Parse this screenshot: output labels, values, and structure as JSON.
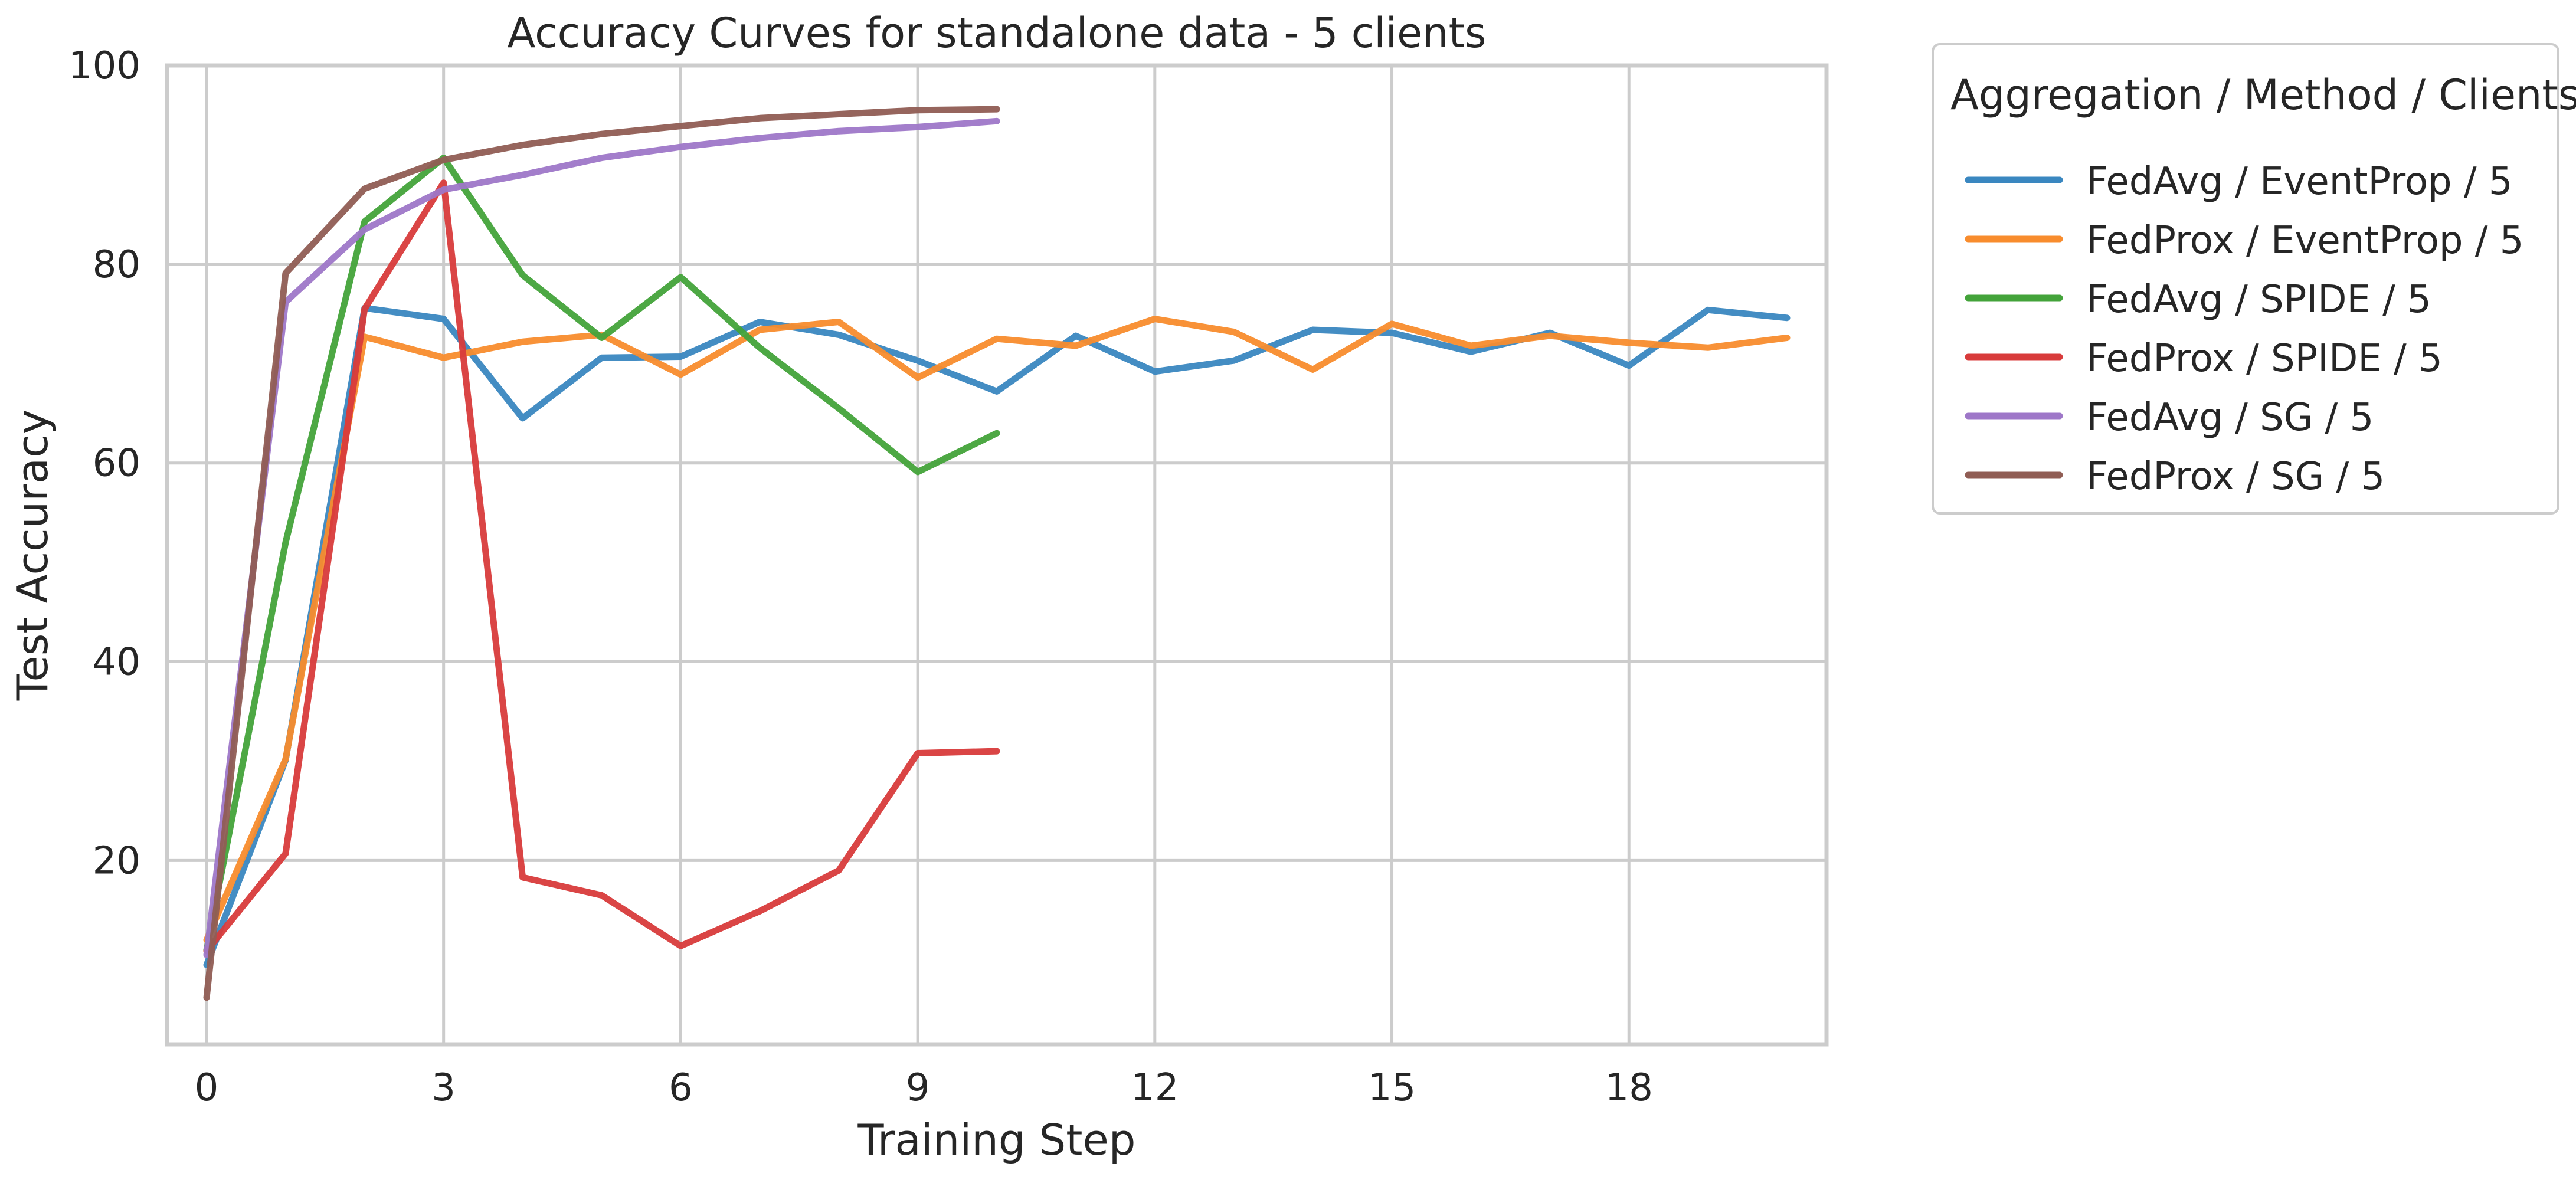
{
  "chart_data": {
    "type": "line",
    "title": "Accuracy Curves for standalone data - 5 clients",
    "xlabel": "Training Step",
    "ylabel": "Test Accuracy",
    "xlim": [
      -0.5,
      20.5
    ],
    "ylim": [
      1.5,
      100
    ],
    "xticks": [
      0,
      3,
      6,
      9,
      12,
      15,
      18
    ],
    "yticks": [
      20,
      40,
      60,
      80,
      100
    ],
    "grid": true,
    "legend": {
      "title": "Aggregation / Method / Clients",
      "placement": "outside right, top"
    },
    "series": [
      {
        "name": "FedAvg / EventProp / 5",
        "color": "#3a87c0",
        "x": [
          0,
          1,
          2,
          3,
          4,
          5,
          6,
          7,
          8,
          9,
          10,
          11,
          12,
          13,
          14,
          15,
          16,
          17,
          18,
          19,
          20
        ],
        "values": [
          9.5,
          30.1,
          75.6,
          74.5,
          64.5,
          70.6,
          70.7,
          74.2,
          72.9,
          70.3,
          67.2,
          72.8,
          69.2,
          70.3,
          73.4,
          73.1,
          71.2,
          73.1,
          69.8,
          75.4,
          74.6
        ]
      },
      {
        "name": "FedProx / EventProp / 5",
        "color": "#f88c2d",
        "x": [
          0,
          1,
          2,
          3,
          4,
          5,
          6,
          7,
          8,
          9,
          10,
          11,
          12,
          13,
          14,
          15,
          16,
          17,
          18,
          19,
          20
        ],
        "values": [
          12.0,
          30.2,
          72.7,
          70.6,
          72.2,
          72.9,
          68.9,
          73.4,
          74.2,
          68.6,
          72.5,
          71.8,
          74.5,
          73.2,
          69.4,
          74.0,
          71.8,
          72.8,
          72.1,
          71.6,
          72.6
        ]
      },
      {
        "name": "FedAvg / SPIDE / 5",
        "color": "#43a33a",
        "x": [
          0,
          1,
          2,
          3,
          4,
          5,
          6,
          7,
          8,
          9,
          10
        ],
        "values": [
          11.0,
          52.0,
          84.3,
          90.7,
          78.9,
          72.6,
          78.7,
          71.6,
          65.5,
          59.1,
          63.0
        ]
      },
      {
        "name": "FedProx / SPIDE / 5",
        "color": "#d83b3b",
        "x": [
          0,
          1,
          2,
          3,
          4,
          5,
          6,
          7,
          8,
          9,
          10
        ],
        "values": [
          10.9,
          20.7,
          75.5,
          88.2,
          18.3,
          16.5,
          11.4,
          14.9,
          19.0,
          30.8,
          31.0
        ]
      },
      {
        "name": "FedAvg / SG / 5",
        "color": "#9e77c8",
        "x": [
          0,
          1,
          2,
          3,
          4,
          5,
          6,
          7,
          8,
          9,
          10
        ],
        "values": [
          10.5,
          76.2,
          83.5,
          87.5,
          89.0,
          90.7,
          91.8,
          92.7,
          93.4,
          93.8,
          94.4
        ]
      },
      {
        "name": "FedProx / SG / 5",
        "color": "#905d54",
        "x": [
          0,
          1,
          2,
          3,
          4,
          5,
          6,
          7,
          8,
          9,
          10
        ],
        "values": [
          6.2,
          79.1,
          87.6,
          90.5,
          92.0,
          93.1,
          93.9,
          94.7,
          95.1,
          95.5,
          95.6
        ]
      }
    ]
  }
}
